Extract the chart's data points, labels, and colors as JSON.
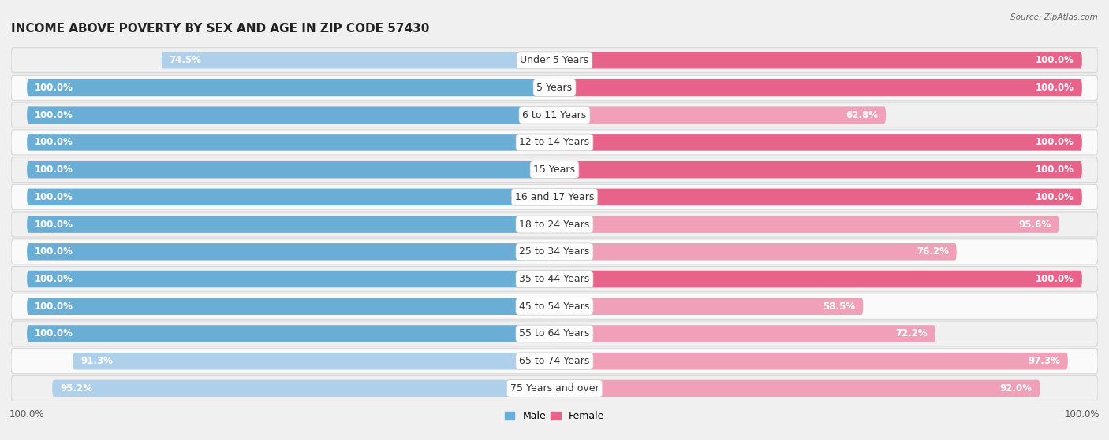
{
  "title": "INCOME ABOVE POVERTY BY SEX AND AGE IN ZIP CODE 57430",
  "source": "Source: ZipAtlas.com",
  "categories": [
    "Under 5 Years",
    "5 Years",
    "6 to 11 Years",
    "12 to 14 Years",
    "15 Years",
    "16 and 17 Years",
    "18 to 24 Years",
    "25 to 34 Years",
    "35 to 44 Years",
    "45 to 54 Years",
    "55 to 64 Years",
    "65 to 74 Years",
    "75 Years and over"
  ],
  "male_values": [
    74.5,
    100.0,
    100.0,
    100.0,
    100.0,
    100.0,
    100.0,
    100.0,
    100.0,
    100.0,
    100.0,
    91.3,
    95.2
  ],
  "female_values": [
    100.0,
    100.0,
    62.8,
    100.0,
    100.0,
    100.0,
    95.6,
    76.2,
    100.0,
    58.5,
    72.2,
    97.3,
    92.0
  ],
  "male_color_full": "#6aaed6",
  "male_color_partial": "#afd0ea",
  "female_color_full": "#e8638a",
  "female_color_partial": "#f0a0b8",
  "row_bg_even": "#f0f0f0",
  "row_bg_odd": "#fafafa",
  "row_border": "#d8d8d8",
  "bg_color": "#f0f0f0",
  "title_fontsize": 11,
  "label_fontsize": 9,
  "value_fontsize": 8.5,
  "bar_height": 0.62,
  "x_max": 100
}
